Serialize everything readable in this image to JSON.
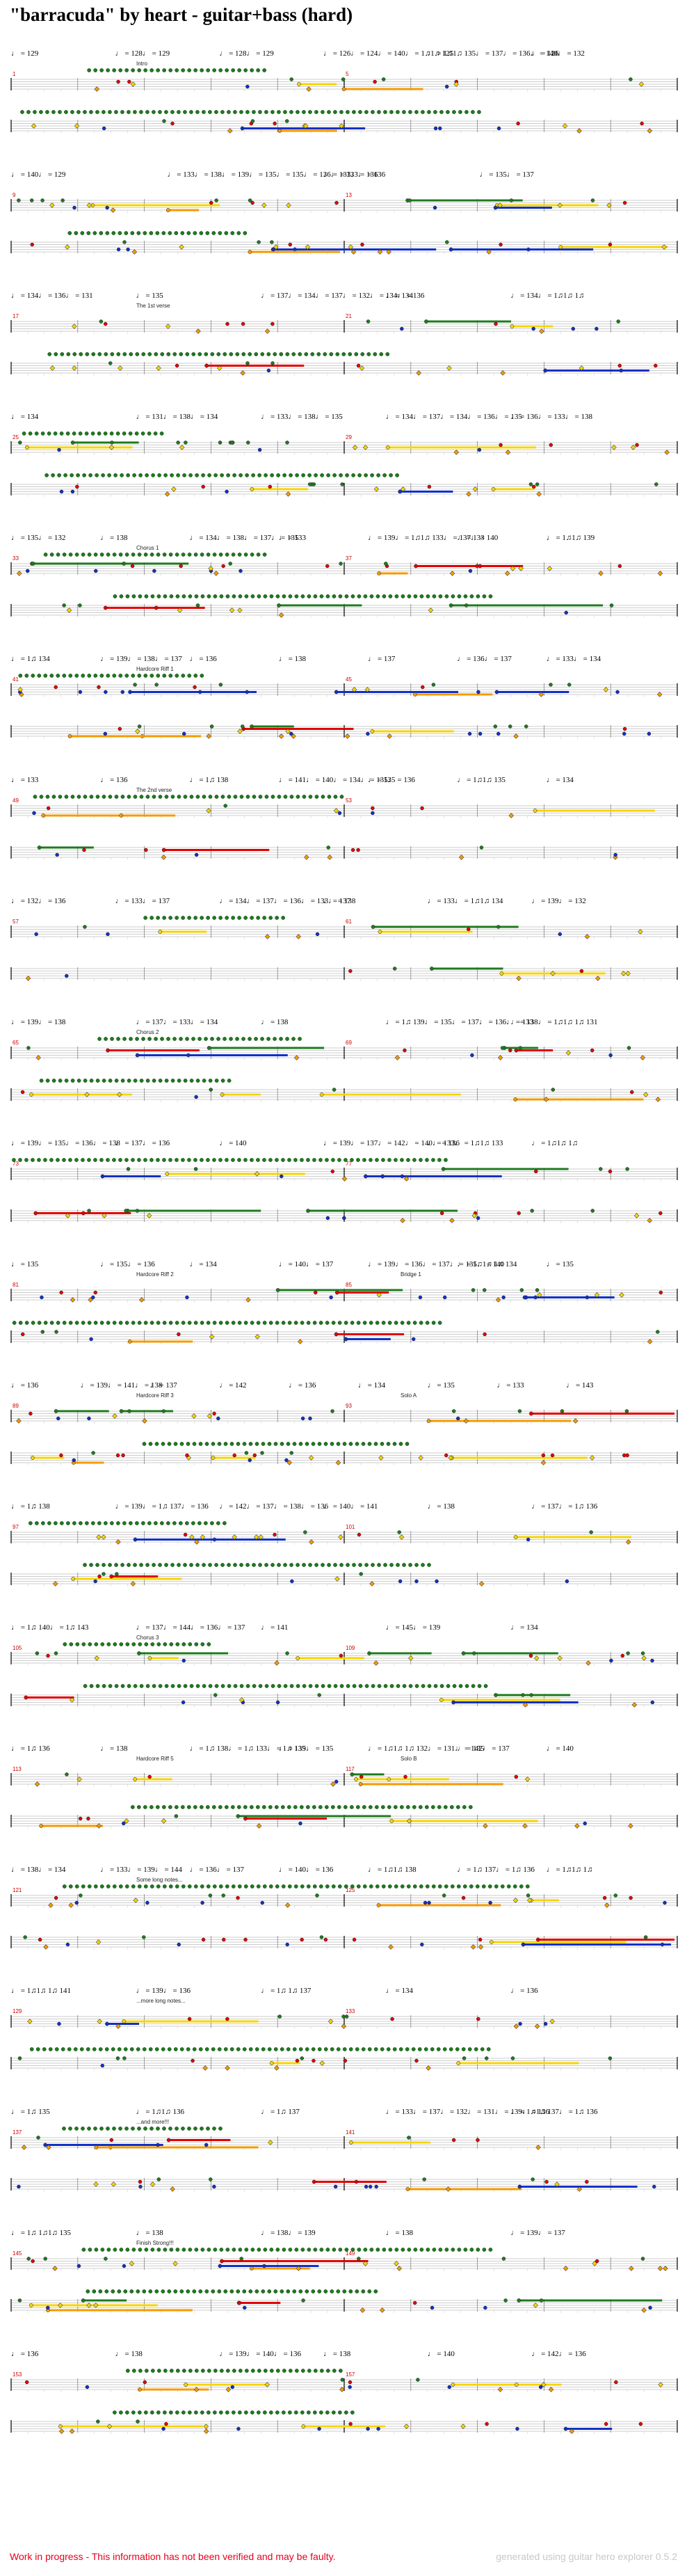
{
  "title": "\"barracuda\" by heart - guitar+bass (hard)",
  "footer": {
    "warning": "Work in progress - This information has not been verified and may be faulty.",
    "credit": "generated using guitar hero explorer 0.5.2"
  },
  "colors": {
    "green": "#1f7a1f",
    "red": "#e00000",
    "yellow": "#f5d400",
    "blue": "#1030c8",
    "orange": "#f59a00"
  },
  "systems": [
    {
      "tempos": [
        "♩ = 129",
        "♩ = 128♩ = 129",
        "♩ = 128♩ = 129",
        "♩ = 126♩ = 124♩ = 140♩ = 1♫1♫ 125",
        "♩ = 1♫1♫ 135♩ = 137♩ = 136♩ = 140♩ = 132",
        "♩ = 126"
      ],
      "sections": [
        "Intro"
      ],
      "measures": [
        "1",
        "",
        "",
        "",
        "",
        "5",
        "",
        "",
        "",
        ""
      ]
    },
    {
      "tempos": [
        "♩ = 140♩ = 129",
        "♩ = 133♩ = 138♩ = 139♩ = 135♩ = 135♩ = 136♩ = 133♩ = 136",
        "♩ = 133♩ = 136",
        "♩ = 135♩ = 137"
      ],
      "sections": [],
      "measures": [
        "9",
        "",
        "",
        "",
        "",
        "13",
        "",
        "",
        "",
        ""
      ]
    },
    {
      "tempos": [
        "♩ = 134♩ = 136♩ = 131",
        "♩ = 135",
        "♩ = 137♩ = 134♩ = 137♩ = 132♩ = 134♩ = 136",
        "♩ = 134",
        "♩ = 134♩ = 1♫1♫ 1♫"
      ],
      "sections": [
        "The 1st verse"
      ],
      "measures": [
        "17",
        "",
        "",
        "",
        "",
        "21",
        "",
        "",
        "",
        ""
      ]
    },
    {
      "tempos": [
        "♩ = 134",
        "♩ = 131♩ = 138♩ = 134",
        "♩ = 133♩ = 138♩ = 135",
        "♩ = 134♩ = 137♩ = 134♩ = 136♩ = 135",
        "♩ = 136♩ = 133♩ = 138"
      ],
      "sections": [],
      "measures": [
        "25",
        "",
        "",
        "",
        "",
        "29",
        "",
        "",
        "",
        ""
      ]
    },
    {
      "tempos": [
        "♩ = 135♩ = 132",
        "♩ = 138",
        "♩ = 134♩ = 138♩ = 137♩ = 135",
        "♩ = 133",
        "♩ = 139♩ = 1♫1♫ 133♩ = 137♩ = 140",
        "♩ = 133",
        "♩ = 1♫1♫ 139"
      ],
      "sections": [
        "Chorus 1"
      ],
      "measures": [
        "33",
        "",
        "",
        "",
        "",
        "37",
        "",
        "",
        "",
        ""
      ]
    },
    {
      "tempos": [
        "♩ = 1♫ 134",
        "♩ = 139♩ = 138♩ = 137",
        "♩ = 136",
        "♩ = 138",
        "♩ = 137",
        "♩ = 136♩ = 137",
        "♩ = 133♩ = 134"
      ],
      "sections": [
        "Hardcore Riff 1"
      ],
      "measures": [
        "41",
        "",
        "",
        "",
        "",
        "45",
        "",
        "",
        "",
        ""
      ]
    },
    {
      "tempos": [
        "♩ = 133",
        "♩ = 136",
        "♩ = 1♫ 138",
        "♩ = 141♩ = 140♩ = 134♩ = 135♩ = 136",
        "♩ = 135",
        "♩ = 1♫1♫ 135",
        "♩ = 134"
      ],
      "sections": [
        "The 2nd verse"
      ],
      "measures": [
        "49",
        "",
        "",
        "",
        "",
        "53",
        "",
        "",
        "",
        ""
      ]
    },
    {
      "tempos": [
        "♩ = 132♩ = 136",
        "♩ = 133♩ = 137",
        "♩ = 134♩ = 137♩ = 136♩ = 133♩ = 138",
        "♩ = 137",
        "♩ = 133♩ = 1♫1♫ 134",
        "♩ = 139♩ = 132"
      ],
      "sections": [],
      "measures": [
        "57",
        "",
        "",
        "",
        "",
        "61",
        "",
        "",
        "",
        ""
      ]
    },
    {
      "tempos": [
        "♩ = 139♩ = 138",
        "♩ = 137♩ = 133♩ = 134",
        "♩ = 138",
        "♩ = 1♫ 139♩ = 135♩ = 137♩ = 136♩ = 133",
        "♩ = 138♩ = 1♫1♫ 1♫ 131"
      ],
      "sections": [
        "Chorus 2"
      ],
      "measures": [
        "65",
        "",
        "",
        "",
        "",
        "69",
        "",
        "",
        "",
        ""
      ]
    },
    {
      "tempos": [
        "♩ = 139♩ = 135♩ = 136♩ = 138",
        "♩ = 137♩ = 136",
        "♩ = 140",
        "♩ = 139♩ = 137♩ = 142♩ = 140♩ = 136",
        "♩ = 133♩ = 1♫1♫ 133",
        "♩ = 1♫1♫ 1♫"
      ],
      "sections": [],
      "measures": [
        "73",
        "",
        "",
        "",
        "",
        "77",
        "",
        "",
        "",
        ""
      ]
    },
    {
      "tempos": [
        "♩ = 135",
        "♩ = 135♩ = 136",
        "♩ = 134",
        "♩ = 140♩ = 137",
        "♩ = 139♩ = 136♩ = 137♩ = 135♩ = 140",
        "♩ = 1♫1♫ 1♫ 134",
        "♩ = 135"
      ],
      "sections": [
        "Hardcore Riff 2",
        "Bridge 1"
      ],
      "measures": [
        "81",
        "",
        "",
        "",
        "",
        "85",
        "",
        "",
        "",
        ""
      ]
    },
    {
      "tempos": [
        "♩ = 136",
        "♩ = 139♩ = 141♩ = 138",
        "♩ = 137",
        "♩ = 142",
        "♩ = 136",
        "♩ = 134",
        "♩ = 135",
        "♩ = 133",
        "♩ = 143"
      ],
      "sections": [
        "Hardcore Riff 3",
        "Solo A"
      ],
      "measures": [
        "89",
        "",
        "",
        "",
        "",
        "93",
        "",
        "",
        "",
        ""
      ]
    },
    {
      "tempos": [
        "♩ = 1♫ 138",
        "♩ = 139♩ = 1♫ 137♩ = 136",
        "♩ = 142♩ = 137♩ = 138♩ = 136",
        "♩ = 140♩ = 141",
        "♩ = 138",
        "♩ = 137♩ = 1♫ 136"
      ],
      "sections": [],
      "measures": [
        "97",
        "",
        "",
        "",
        "",
        "101",
        "",
        "",
        "",
        ""
      ]
    },
    {
      "tempos": [
        "♩ = 1♫ 140♩ = 1♫ 143",
        "♩ = 137♩ = 144♩ = 136♩ = 137",
        "♩ = 141",
        "♩ = 145♩ = 139",
        "♩ = 134"
      ],
      "sections": [
        "Chorus 3"
      ],
      "measures": [
        "105",
        "",
        "",
        "",
        "",
        "109",
        "",
        "",
        "",
        ""
      ]
    },
    {
      "tempos": [
        "♩ = 1♫ 136",
        "♩ = 138",
        "♩ = 1♫ 138♩ = 1♫ 133♩ = 1♫ 135",
        "♩ = 139♩ = 135",
        "♩ = 1♫1♫ 1♫ 132♩ = 131♩ = 142♩ = 137",
        "♩ = 135",
        "♩ = 140"
      ],
      "sections": [
        "Hardcore Riff 5",
        "Solo B"
      ],
      "measures": [
        "113",
        "",
        "",
        "",
        "",
        "117",
        "",
        "",
        "",
        ""
      ]
    },
    {
      "tempos": [
        "♩ = 138♩ = 134",
        "♩ = 133♩ = 139♩ = 144",
        "♩ = 136♩ = 137",
        "♩ = 140♩ = 136",
        "♩ = 1♫1♫ 138",
        "♩ = 1♫ 137♩ = 1♫ 136",
        "♩ = 1♫1♫ 1♫"
      ],
      "sections": [
        "Some long notes..."
      ],
      "measures": [
        "121",
        "",
        "",
        "",
        "",
        "125",
        "",
        "",
        "",
        ""
      ]
    },
    {
      "tempos": [
        "♩ = 1♫1♫ 1♫ 141",
        "♩ = 139♩ = 136",
        "♩ = 1♫ 1♫ 137",
        "♩ = 134",
        "♩ = 136"
      ],
      "sections": [
        "...more long notes..."
      ],
      "measures": [
        "129",
        "",
        "",
        "",
        "",
        "133",
        "",
        "",
        "",
        ""
      ]
    },
    {
      "tempos": [
        "♩ = 1♫ 135",
        "♩ = 1♫1♫ 136",
        "♩ = 1♫ 137",
        "♩ = 133♩ = 137♩ = 132♩ = 131♩ = 139♩ = 136",
        "♩ = 1♫1♫ 137♩ = 1♫ 136"
      ],
      "sections": [
        "...and more!!!"
      ],
      "measures": [
        "137",
        "",
        "",
        "",
        "",
        "141",
        "",
        "",
        "",
        ""
      ]
    },
    {
      "tempos": [
        "♩ = 1♫ 1♫1♫ 135",
        "♩ = 138",
        "♩ = 138♩ = 139",
        "♩ = 138",
        "♩ = 139♩ = 137"
      ],
      "sections": [
        "Finish Strong!!!"
      ],
      "measures": [
        "145",
        "",
        "",
        "",
        "",
        "149",
        "",
        "",
        "",
        ""
      ]
    },
    {
      "tempos": [
        "♩ = 136",
        "♩ = 138",
        "♩ = 139♩ = 140♩ = 136",
        "♩ = 138",
        "♩ = 140",
        "♩ = 142♩ = 136"
      ],
      "sections": [],
      "measures": [
        "153",
        "",
        "",
        "",
        "",
        "157",
        "",
        "",
        "",
        ""
      ]
    }
  ]
}
